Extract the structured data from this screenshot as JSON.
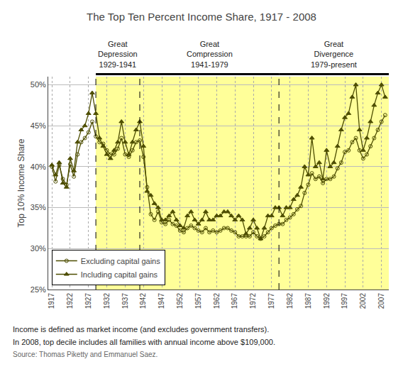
{
  "chart_data": {
    "type": "line",
    "title": "The Top Ten Percent Income Share, 1917 - 2008",
    "ylabel": "Top 10% Income Share",
    "footnotes": [
      "Income is defined as market income (and excludes government transfers).",
      "In 2008, top decile includes all families with annual income above $109,000."
    ],
    "source": "Source: Thomas Piketty and Emmanuel Saez.",
    "periods": [
      {
        "label": "Great\nDepression\n1929-1941",
        "start": 1929,
        "end": 1941,
        "color": "#ffff99"
      },
      {
        "label": "Great\nCompression\n1941-1979",
        "start": 1941,
        "end": 1979,
        "color": "#ffff99"
      },
      {
        "label": "Great\nDivergence\n1979-present",
        "start": 1979,
        "end": 2009,
        "color": "#ffff99"
      }
    ],
    "x": [
      1917,
      1918,
      1919,
      1920,
      1921,
      1922,
      1923,
      1924,
      1925,
      1926,
      1927,
      1928,
      1929,
      1930,
      1931,
      1932,
      1933,
      1934,
      1935,
      1936,
      1937,
      1938,
      1939,
      1940,
      1941,
      1942,
      1943,
      1944,
      1945,
      1946,
      1947,
      1948,
      1949,
      1950,
      1951,
      1952,
      1953,
      1954,
      1955,
      1956,
      1957,
      1958,
      1959,
      1960,
      1961,
      1962,
      1963,
      1964,
      1965,
      1966,
      1967,
      1968,
      1969,
      1970,
      1971,
      1972,
      1973,
      1974,
      1975,
      1976,
      1977,
      1978,
      1979,
      1980,
      1981,
      1982,
      1983,
      1984,
      1985,
      1986,
      1987,
      1988,
      1989,
      1990,
      1991,
      1992,
      1993,
      1994,
      1995,
      1996,
      1997,
      1998,
      1999,
      2000,
      2001,
      2002,
      2003,
      2004,
      2005,
      2006,
      2007,
      2008
    ],
    "series": [
      {
        "name": "Excluding capital gains",
        "color": "#4d4d00",
        "marker": "circle-open",
        "values": [
          40.0,
          38.2,
          40.2,
          38.5,
          37.8,
          40.3,
          38.8,
          41.5,
          43.0,
          43.5,
          44.2,
          45.5,
          43.7,
          43.0,
          42.8,
          42.0,
          41.5,
          41.5,
          42.2,
          43.5,
          41.5,
          41.2,
          42.0,
          43.0,
          43.2,
          41.2,
          37.5,
          34.2,
          33.5,
          34.5,
          33.2,
          33.0,
          33.5,
          33.0,
          32.8,
          32.2,
          32.0,
          32.5,
          32.8,
          32.5,
          32.2,
          32.0,
          32.5,
          32.0,
          32.2,
          32.0,
          32.2,
          32.5,
          32.5,
          32.2,
          32.0,
          31.5,
          31.5,
          31.5,
          31.5,
          32.0,
          31.5,
          31.2,
          31.5,
          32.0,
          32.5,
          32.8,
          33.0,
          33.0,
          33.5,
          33.8,
          34.2,
          34.8,
          35.2,
          36.8,
          37.8,
          39.2,
          38.5,
          38.8,
          38.0,
          38.5,
          38.5,
          38.8,
          39.8,
          40.5,
          41.8,
          42.0,
          43.0,
          43.5,
          42.0,
          41.0,
          41.5,
          42.5,
          43.5,
          44.5,
          45.5,
          46.3
        ]
      },
      {
        "name": "Including capital gains",
        "color": "#4d4d00",
        "marker": "triangle-up",
        "values": [
          40.2,
          39.0,
          40.5,
          38.0,
          37.5,
          41.0,
          39.5,
          43.0,
          44.5,
          45.0,
          46.5,
          49.0,
          46.5,
          43.5,
          42.5,
          41.5,
          41.0,
          42.0,
          43.0,
          45.5,
          43.0,
          41.5,
          43.0,
          44.5,
          45.5,
          42.5,
          37.0,
          36.5,
          35.5,
          35.0,
          33.5,
          33.5,
          34.0,
          34.5,
          33.5,
          32.8,
          32.5,
          34.0,
          34.5,
          33.5,
          33.0,
          33.5,
          34.5,
          33.5,
          33.5,
          34.0,
          34.0,
          34.5,
          34.5,
          34.0,
          33.5,
          34.0,
          33.5,
          31.8,
          32.5,
          33.5,
          32.5,
          31.2,
          32.5,
          34.0,
          34.0,
          35.0,
          35.0,
          34.0,
          35.0,
          35.0,
          36.0,
          36.5,
          37.5,
          40.0,
          39.0,
          43.5,
          40.0,
          40.5,
          38.5,
          42.0,
          40.0,
          40.5,
          42.5,
          44.5,
          46.0,
          46.5,
          48.5,
          50.0,
          44.5,
          42.0,
          43.5,
          45.5,
          47.5,
          49.0,
          50.0,
          48.5
        ]
      }
    ],
    "xlim": [
      1916,
      2009
    ],
    "xticks": [
      1917,
      1922,
      1927,
      1932,
      1937,
      1942,
      1947,
      1952,
      1957,
      1962,
      1967,
      1972,
      1977,
      1982,
      1987,
      1992,
      1997,
      2002,
      2007
    ],
    "ylim": [
      25,
      51
    ],
    "yticks": [
      {
        "value": 25,
        "label": "25%"
      },
      {
        "value": 30,
        "label": "30%"
      },
      {
        "value": 35,
        "label": "35%"
      },
      {
        "value": 40,
        "label": "40%"
      },
      {
        "value": 45,
        "label": "45%"
      },
      {
        "value": 50,
        "label": "50%"
      }
    ],
    "grid": true,
    "legend": "lower left"
  }
}
